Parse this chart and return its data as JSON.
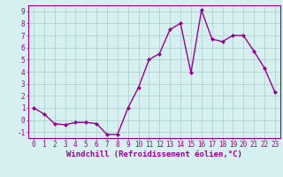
{
  "x": [
    0,
    1,
    2,
    3,
    4,
    5,
    6,
    7,
    8,
    9,
    10,
    11,
    12,
    13,
    14,
    15,
    16,
    17,
    18,
    19,
    20,
    21,
    22,
    23
  ],
  "y": [
    1.0,
    0.5,
    -0.3,
    -0.4,
    -0.2,
    -0.2,
    -0.3,
    -1.2,
    -1.2,
    1.0,
    2.7,
    5.0,
    5.5,
    7.5,
    8.0,
    3.9,
    9.1,
    6.7,
    6.5,
    7.0,
    7.0,
    5.7,
    4.3,
    2.3
  ],
  "line_color": "#990099",
  "marker": "D",
  "marker_size": 2.0,
  "bg_color": "#d6f0f0",
  "grid_color": "#aacccc",
  "xlabel": "Windchill (Refroidissement éolien,°C)",
  "xlabel_color": "#990099",
  "xlim": [
    -0.5,
    23.5
  ],
  "ylim": [
    -1.5,
    9.5
  ],
  "yticks": [
    -1,
    0,
    1,
    2,
    3,
    4,
    5,
    6,
    7,
    8,
    9
  ],
  "xticks": [
    0,
    1,
    2,
    3,
    4,
    5,
    6,
    7,
    8,
    9,
    10,
    11,
    12,
    13,
    14,
    15,
    16,
    17,
    18,
    19,
    20,
    21,
    22,
    23
  ],
  "tick_color": "#990099",
  "tick_label_fontsize": 5.5,
  "xlabel_fontsize": 6.5,
  "line_width": 1.0,
  "spine_color": "#990099",
  "spine_lw": 0.8
}
